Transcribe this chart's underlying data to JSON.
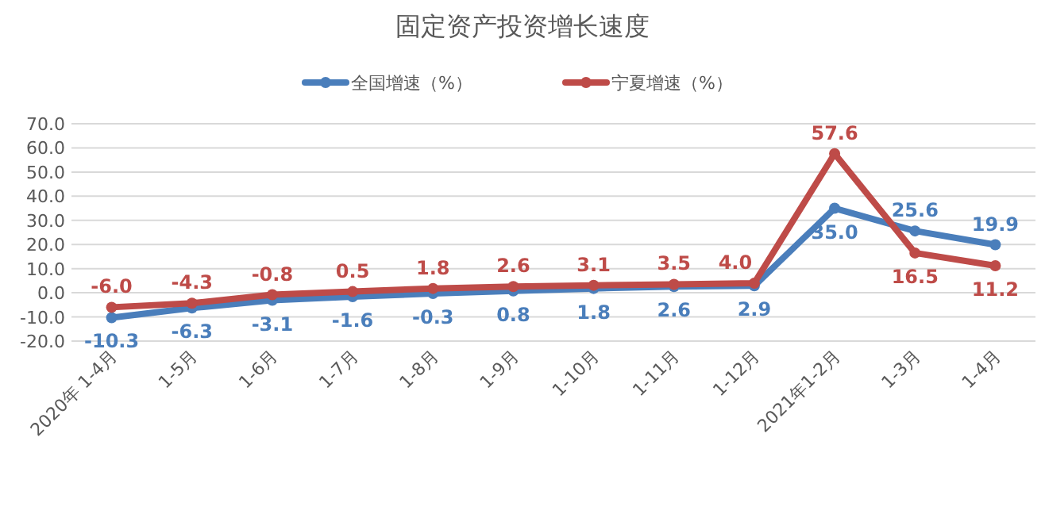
{
  "chart_data": {
    "type": "line",
    "title": "固定资产投资增长速度",
    "categories": [
      "2020年 1-4月",
      "1-5月",
      "1-6月",
      "1-7月",
      "1-8月",
      "1-9月",
      "1-10月",
      "1-11月",
      "1-12月",
      "2021年1-2月",
      "1-3月",
      "1-4月"
    ],
    "series": [
      {
        "name": "全国增速（%）",
        "color": "#4a7ebb",
        "values": [
          -10.3,
          -6.3,
          -3.1,
          -1.6,
          -0.3,
          0.8,
          1.8,
          2.6,
          2.9,
          35.0,
          25.6,
          19.9
        ],
        "value_labels": [
          "-10.3",
          "-6.3",
          "-3.1",
          "-1.6",
          "-0.3",
          "0.8",
          "1.8",
          "2.6",
          "2.9",
          "35.0",
          "25.6",
          "19.9"
        ]
      },
      {
        "name": "宁夏增速（%）",
        "color": "#be4b48",
        "values": [
          -6.0,
          -4.3,
          -0.8,
          0.5,
          1.8,
          2.6,
          3.1,
          3.5,
          4.0,
          57.6,
          16.5,
          11.2
        ],
        "value_labels": [
          "-6.0",
          "-4.3",
          "-0.8",
          "0.5",
          "1.8",
          "2.6",
          "3.1",
          "3.5",
          "4.0",
          "57.6",
          "16.5",
          "11.2"
        ]
      }
    ],
    "ylim": [
      -20,
      70
    ],
    "yticks": [
      {
        "value": -20,
        "label": "-20.0"
      },
      {
        "value": -10,
        "label": "-10.0"
      },
      {
        "value": 0,
        "label": "0.0"
      },
      {
        "value": 10,
        "label": "10.0"
      },
      {
        "value": 20,
        "label": "20.0"
      },
      {
        "value": 30,
        "label": "30.0"
      },
      {
        "value": 40,
        "label": "40.0"
      },
      {
        "value": 50,
        "label": "50.0"
      },
      {
        "value": 60,
        "label": "60.0"
      },
      {
        "value": 70,
        "label": "70.0"
      }
    ],
    "grid": "y",
    "legend": "top",
    "marker": "circle",
    "line_style": "solid"
  }
}
